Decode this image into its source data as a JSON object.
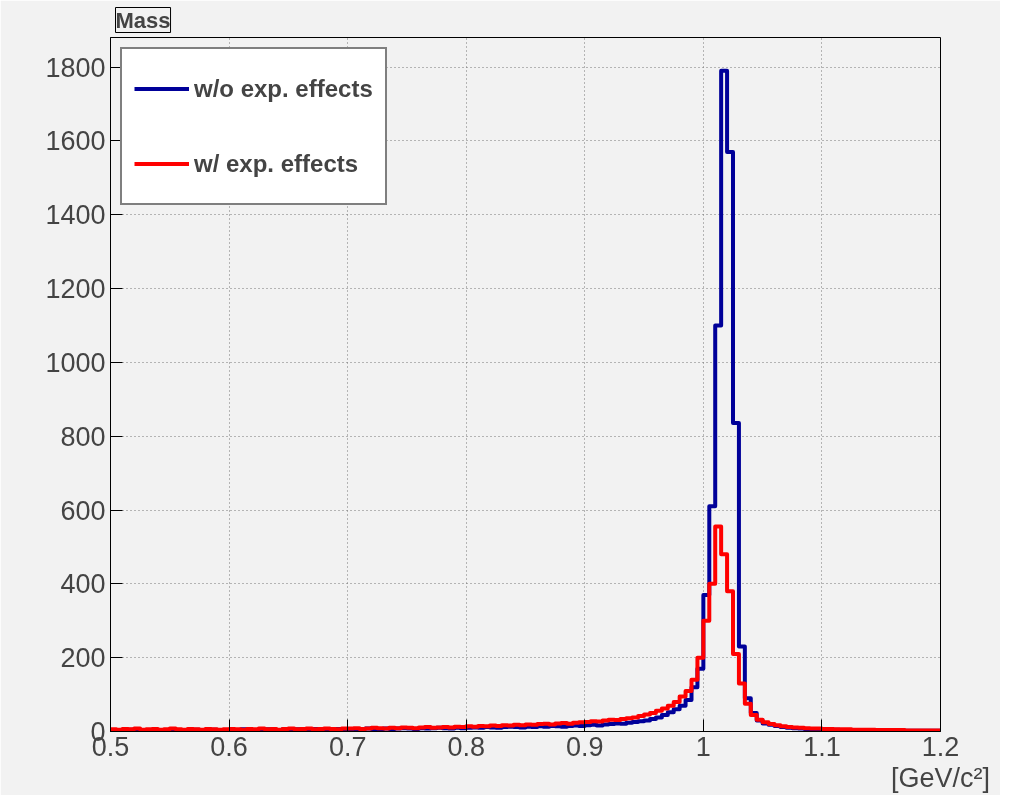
{
  "chart_data": {
    "type": "histogram",
    "title": "Mass",
    "xlabel": "[GeV/c²]",
    "bins": [
      0.5,
      0.505,
      0.51,
      0.515,
      0.52,
      0.525,
      0.53,
      0.535,
      0.54,
      0.545,
      0.55,
      0.555,
      0.56,
      0.565,
      0.57,
      0.575,
      0.58,
      0.585,
      0.59,
      0.595,
      0.6,
      0.605,
      0.61,
      0.615,
      0.62,
      0.625,
      0.63,
      0.635,
      0.64,
      0.645,
      0.65,
      0.655,
      0.66,
      0.665,
      0.67,
      0.675,
      0.68,
      0.685,
      0.69,
      0.695,
      0.7,
      0.705,
      0.71,
      0.715,
      0.72,
      0.725,
      0.73,
      0.735,
      0.74,
      0.745,
      0.75,
      0.755,
      0.76,
      0.765,
      0.77,
      0.775,
      0.78,
      0.785,
      0.79,
      0.795,
      0.8,
      0.805,
      0.81,
      0.815,
      0.82,
      0.825,
      0.83,
      0.835,
      0.84,
      0.845,
      0.85,
      0.855,
      0.86,
      0.865,
      0.87,
      0.875,
      0.88,
      0.885,
      0.89,
      0.895,
      0.9,
      0.905,
      0.91,
      0.915,
      0.92,
      0.925,
      0.93,
      0.935,
      0.94,
      0.945,
      0.95,
      0.955,
      0.96,
      0.965,
      0.97,
      0.975,
      0.98,
      0.985,
      0.99,
      0.995,
      1.0,
      1.005,
      1.01,
      1.015,
      1.02,
      1.025,
      1.03,
      1.035,
      1.04,
      1.045,
      1.05,
      1.055,
      1.06,
      1.065,
      1.07,
      1.075,
      1.08,
      1.085,
      1.09,
      1.095,
      1.1,
      1.105,
      1.11,
      1.115,
      1.12,
      1.125,
      1.13,
      1.135,
      1.14,
      1.145,
      1.15,
      1.155,
      1.16,
      1.165,
      1.17,
      1.175,
      1.18,
      1.185,
      1.19,
      1.195,
      1.2
    ],
    "series": [
      {
        "name": "w/o exp. effects",
        "color": "#000099",
        "values": [
          3,
          4,
          3,
          5,
          4,
          3,
          4,
          5,
          3,
          4,
          5,
          4,
          3,
          4,
          5,
          4,
          3,
          5,
          4,
          4,
          5,
          4,
          6,
          5,
          4,
          5,
          6,
          5,
          4,
          6,
          5,
          6,
          5,
          6,
          7,
          6,
          5,
          6,
          7,
          6,
          7,
          6,
          7,
          8,
          7,
          6,
          8,
          7,
          8,
          9,
          8,
          7,
          9,
          8,
          9,
          10,
          9,
          8,
          10,
          9,
          10,
          11,
          10,
          12,
          11,
          10,
          12,
          13,
          12,
          11,
          13,
          12,
          14,
          13,
          15,
          14,
          13,
          15,
          16,
          15,
          17,
          18,
          16,
          19,
          20,
          22,
          21,
          24,
          26,
          28,
          30,
          34,
          38,
          45,
          52,
          60,
          70,
          85,
          120,
          170,
          370,
          610,
          1100,
          1790,
          1570,
          836,
          230,
          90,
          50,
          30,
          22,
          18,
          15,
          12,
          10,
          9,
          8,
          7,
          6,
          6,
          5,
          5,
          5,
          4,
          4,
          4,
          4,
          3,
          3,
          3,
          3,
          3,
          3,
          3,
          2,
          2,
          2,
          2,
          2,
          2
        ]
      },
      {
        "name": "w/ exp. effects",
        "color": "#ff0000",
        "values": [
          6,
          5,
          7,
          6,
          8,
          5,
          6,
          7,
          5,
          6,
          8,
          6,
          5,
          7,
          6,
          5,
          7,
          6,
          5,
          6,
          7,
          6,
          5,
          7,
          6,
          8,
          6,
          7,
          5,
          7,
          8,
          6,
          7,
          8,
          6,
          7,
          8,
          7,
          6,
          8,
          8,
          9,
          7,
          8,
          10,
          9,
          8,
          10,
          9,
          11,
          10,
          9,
          11,
          12,
          10,
          11,
          12,
          11,
          13,
          12,
          14,
          13,
          15,
          14,
          16,
          15,
          17,
          16,
          18,
          17,
          19,
          18,
          20,
          21,
          19,
          22,
          23,
          21,
          24,
          25,
          26,
          28,
          27,
          30,
          32,
          31,
          34,
          36,
          38,
          42,
          46,
          50,
          56,
          62,
          70,
          80,
          95,
          110,
          140,
          200,
          300,
          400,
          555,
          480,
          380,
          210,
          130,
          75,
          45,
          32,
          25,
          20,
          17,
          14,
          12,
          11,
          10,
          9,
          8,
          8,
          7,
          7,
          6,
          6,
          6,
          5,
          5,
          5,
          5,
          4,
          4,
          4,
          4,
          4,
          3,
          3,
          3,
          3,
          3,
          3
        ]
      }
    ],
    "xlim": [
      0.5,
      1.2
    ],
    "ylim": [
      0,
      1880
    ],
    "xticks": [
      0.5,
      0.6,
      0.7,
      0.8,
      0.9,
      1,
      1.1,
      1.2
    ],
    "yticks": [
      0,
      200,
      400,
      600,
      800,
      1000,
      1200,
      1400,
      1600,
      1800
    ],
    "grid": true,
    "legend": "top left"
  }
}
